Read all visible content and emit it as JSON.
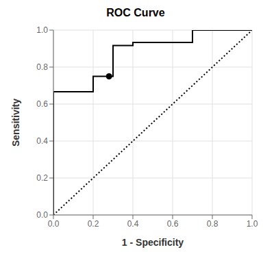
{
  "chart_data": {
    "type": "line",
    "title": "ROC Curve",
    "xlabel": "1 - Specificity",
    "ylabel": "Sensitivity",
    "xlim": [
      0.0,
      1.0
    ],
    "ylim": [
      0.0,
      1.0
    ],
    "xticks": [
      {
        "value": 0.0,
        "label": "0.0"
      },
      0.2,
      0.4,
      0.6,
      0.8,
      {
        "value": 1.0,
        "label": "1.0"
      }
    ],
    "yticks": [
      {
        "value": 0.0,
        "label": "0.0"
      },
      0.2,
      0.4,
      0.6,
      0.8,
      {
        "value": 1.0,
        "label": "1.0"
      }
    ],
    "grid": true,
    "series": [
      {
        "x": [
          0.0,
          1.0
        ],
        "values": [
          0.0,
          1.0
        ],
        "color": "#000000",
        "line_style": "dotted"
      },
      {
        "x": [
          0.0,
          0.0,
          0.2,
          0.2,
          0.3,
          0.3,
          0.4,
          0.4,
          0.6,
          0.7,
          0.7,
          1.0
        ],
        "values": [
          0.0,
          0.667,
          0.667,
          0.75,
          0.75,
          0.917,
          0.917,
          0.933,
          0.933,
          0.933,
          1.0,
          1.0
        ],
        "color": "#000000",
        "line_style": "solid"
      },
      {
        "type": "scatter",
        "x": [
          0.28
        ],
        "values": [
          0.75
        ],
        "color": "#000000",
        "marker": "circle"
      }
    ]
  }
}
